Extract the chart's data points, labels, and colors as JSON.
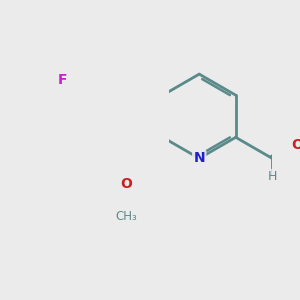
{
  "bg_color": "#ebebeb",
  "bond_color": "#5a8a8a",
  "bond_width": 2.0,
  "atom_colors": {
    "N": "#2020cc",
    "O": "#cc2020",
    "F": "#cc20cc",
    "H": "#5a8a8a",
    "C": "#5a8a8a"
  },
  "figsize": [
    3.0,
    3.0
  ],
  "dpi": 100,
  "bl": 1.0
}
